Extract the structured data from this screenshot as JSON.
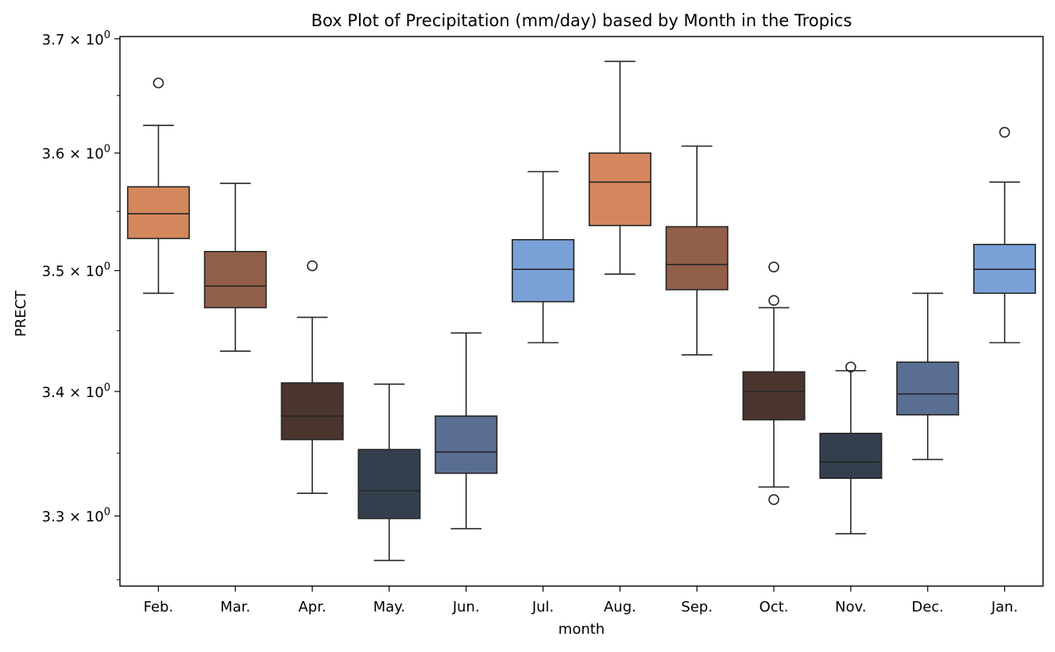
{
  "chart_data": {
    "type": "box",
    "title": "Box Plot of Precipitation (mm/day) based by Month in the Tropics",
    "xlabel": "month",
    "ylabel": "PRECT",
    "yscale": "log",
    "ylim": [
      3.245,
      3.702
    ],
    "y_ticks": [
      {
        "value": 3.3,
        "mantissa": "3.3",
        "sep": "×",
        "base": "10",
        "exp": "0"
      },
      {
        "value": 3.4,
        "mantissa": "3.4",
        "sep": "×",
        "base": "10",
        "exp": "0"
      },
      {
        "value": 3.5,
        "mantissa": "3.5",
        "sep": "×",
        "base": "10",
        "exp": "0"
      },
      {
        "value": 3.6,
        "mantissa": "3.6",
        "sep": "×",
        "base": "10",
        "exp": "0"
      },
      {
        "value": 3.7,
        "mantissa": "3.7",
        "sep": "×",
        "base": "10",
        "exp": "0"
      }
    ],
    "grid": false,
    "legend": "none",
    "categories": [
      "Feb.",
      "Mar.",
      "Apr.",
      "May.",
      "Jun.",
      "Jul.",
      "Aug.",
      "Sep.",
      "Oct.",
      "Nov.",
      "Dec.",
      "Jan."
    ],
    "boxes": [
      {
        "whisker_low": 3.481,
        "q1": 3.527,
        "median": 3.548,
        "q3": 3.571,
        "whisker_high": 3.624,
        "outliers": [
          3.661
        ],
        "color": "#D4875C"
      },
      {
        "whisker_low": 3.433,
        "q1": 3.469,
        "median": 3.487,
        "q3": 3.516,
        "whisker_high": 3.574,
        "outliers": [],
        "color": "#915F47"
      },
      {
        "whisker_low": 3.318,
        "q1": 3.361,
        "median": 3.38,
        "q3": 3.407,
        "whisker_high": 3.461,
        "outliers": [
          3.504
        ],
        "color": "#4A352F"
      },
      {
        "whisker_low": 3.265,
        "q1": 3.298,
        "median": 3.32,
        "q3": 3.353,
        "whisker_high": 3.406,
        "outliers": [],
        "color": "#333F4D"
      },
      {
        "whisker_low": 3.29,
        "q1": 3.334,
        "median": 3.351,
        "q3": 3.38,
        "whisker_high": 3.448,
        "outliers": [],
        "color": "#596E92"
      },
      {
        "whisker_low": 3.44,
        "q1": 3.474,
        "median": 3.501,
        "q3": 3.526,
        "whisker_high": 3.584,
        "outliers": [],
        "color": "#7AA0D8"
      },
      {
        "whisker_low": 3.497,
        "q1": 3.538,
        "median": 3.575,
        "q3": 3.6,
        "whisker_high": 3.68,
        "outliers": [],
        "color": "#D4875C"
      },
      {
        "whisker_low": 3.43,
        "q1": 3.484,
        "median": 3.505,
        "q3": 3.537,
        "whisker_high": 3.606,
        "outliers": [],
        "color": "#915F47"
      },
      {
        "whisker_low": 3.323,
        "q1": 3.377,
        "median": 3.4,
        "q3": 3.416,
        "whisker_high": 3.469,
        "outliers": [
          3.313,
          3.475,
          3.503
        ],
        "color": "#4A352F"
      },
      {
        "whisker_low": 3.286,
        "q1": 3.33,
        "median": 3.343,
        "q3": 3.366,
        "whisker_high": 3.417,
        "outliers": [
          3.42
        ],
        "color": "#333F4D"
      },
      {
        "whisker_low": 3.345,
        "q1": 3.381,
        "median": 3.398,
        "q3": 3.424,
        "whisker_high": 3.481,
        "outliers": [],
        "color": "#596E92"
      },
      {
        "whisker_low": 3.44,
        "q1": 3.481,
        "median": 3.501,
        "q3": 3.522,
        "whisker_high": 3.575,
        "outliers": [
          3.618
        ],
        "color": "#7AA0D8"
      }
    ],
    "line_color": "#262626"
  }
}
